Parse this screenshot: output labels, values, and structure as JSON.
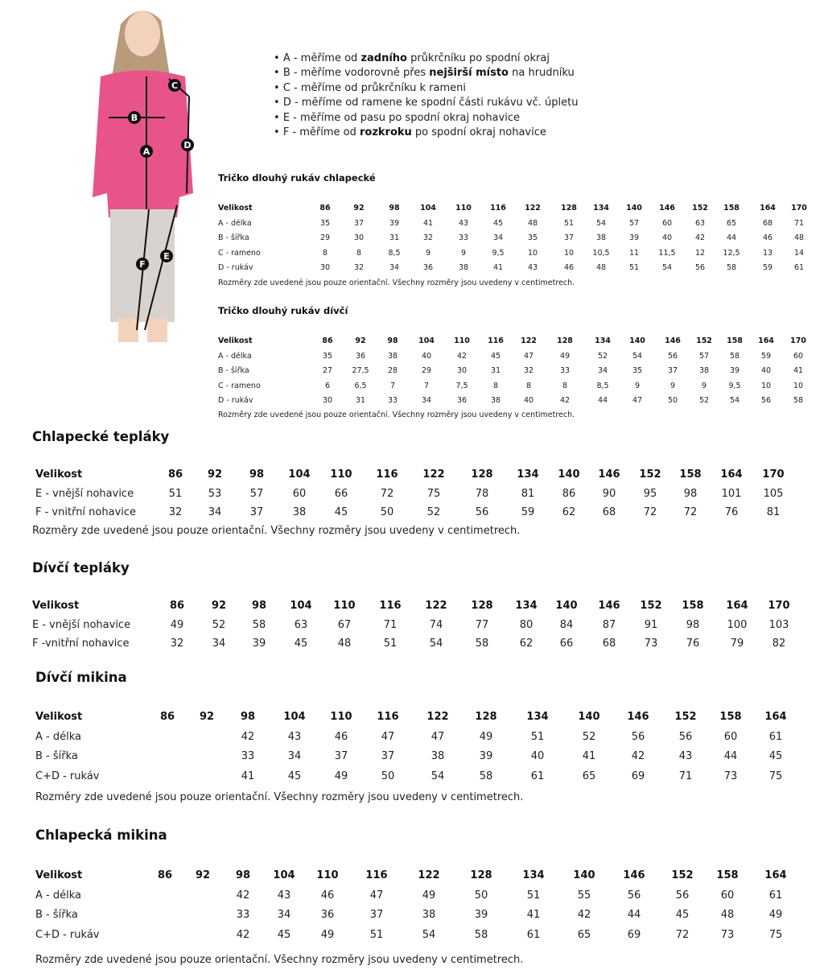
{
  "photo": {
    "markers": [
      "A",
      "B",
      "C",
      "D",
      "E",
      "F"
    ],
    "colors": {
      "top": "#e8548a",
      "marker": "#111111"
    }
  },
  "instructions": [
    {
      "pre": "A - měříme od ",
      "bold": "zadního",
      "post": " průkrčníku po spodní okraj"
    },
    {
      "pre": "B - měříme vodorovně přes ",
      "bold": "nejširší místo",
      "post": " na hrudníku"
    },
    {
      "pre": "C - měříme od průkrčníku k rameni",
      "bold": "",
      "post": ""
    },
    {
      "pre": "D - měříme od ramene ke spodní části rukávu vč. úpletu",
      "bold": "",
      "post": ""
    },
    {
      "pre": "E - měříme od pasu po spodní okraj nohavice",
      "bold": "",
      "post": ""
    },
    {
      "pre": "F - měříme od ",
      "bold": "rozkroku",
      "post": " po spodní okraj nohavice"
    }
  ],
  "tables": [
    {
      "id": "boys-shirt",
      "title": "Tričko dlouhý rukáv chlapecké",
      "header_label": "Velikost",
      "sizes": [
        "86",
        "92",
        "98",
        "104",
        "110",
        "116",
        "122",
        "128",
        "134",
        "140",
        "146",
        "152",
        "158",
        "164",
        "170"
      ],
      "rows": [
        {
          "label": "A - délka",
          "values": [
            "35",
            "37",
            "39",
            "41",
            "43",
            "45",
            "48",
            "51",
            "54",
            "57",
            "60",
            "63",
            "65",
            "68",
            "71"
          ]
        },
        {
          "label": "B - šířka",
          "values": [
            "29",
            "30",
            "31",
            "32",
            "33",
            "34",
            "35",
            "37",
            "38",
            "39",
            "40",
            "42",
            "44",
            "46",
            "48"
          ]
        },
        {
          "label": "C - rameno",
          "values": [
            "8",
            "8",
            "8,5",
            "9",
            "9",
            "9,5",
            "10",
            "10",
            "10,5",
            "11",
            "11,5",
            "12",
            "12,5",
            "13",
            "14"
          ]
        },
        {
          "label": "D - rukáv",
          "values": [
            "30",
            "32",
            "34",
            "36",
            "38",
            "41",
            "43",
            "46",
            "48",
            "51",
            "54",
            "56",
            "58",
            "59",
            "61"
          ]
        }
      ],
      "note": "Rozměry zde uvedené jsou pouze orientační. Všechny rozměry jsou uvedeny v centimetrech."
    },
    {
      "id": "girls-shirt",
      "title": "Tričko dlouhý rukáv dívčí",
      "header_label": "Velikost",
      "sizes": [
        "86",
        "92",
        "98",
        "104",
        "110",
        "116",
        "122",
        "128",
        "134",
        "140",
        "146",
        "152",
        "158",
        "164",
        "170"
      ],
      "rows": [
        {
          "label": "A - délka",
          "values": [
            "35",
            "36",
            "38",
            "40",
            "42",
            "45",
            "47",
            "49",
            "52",
            "54",
            "56",
            "57",
            "58",
            "59",
            "60"
          ]
        },
        {
          "label": "B - šířka",
          "values": [
            "27",
            "27,5",
            "28",
            "29",
            "30",
            "31",
            "32",
            "33",
            "34",
            "35",
            "37",
            "38",
            "39",
            "40",
            "41"
          ]
        },
        {
          "label": "C - rameno",
          "values": [
            "6",
            "6,5",
            "7",
            "7",
            "7,5",
            "8",
            "8",
            "8",
            "8,5",
            "9",
            "9",
            "9",
            "9,5",
            "10",
            "10"
          ]
        },
        {
          "label": "D - rukáv",
          "values": [
            "30",
            "31",
            "33",
            "34",
            "36",
            "38",
            "40",
            "42",
            "44",
            "47",
            "50",
            "52",
            "54",
            "56",
            "58"
          ]
        }
      ],
      "note": "Rozměry zde uvedené jsou pouze orientační. Všechny rozměry jsou uvedeny v centimetrech."
    },
    {
      "id": "boys-pants",
      "title": "Chlapecké tepláky",
      "header_label": "Velikost",
      "sizes": [
        "86",
        "92",
        "98",
        "104",
        "110",
        "116",
        "122",
        "128",
        "134",
        "140",
        "146",
        "152",
        "158",
        "164",
        "170"
      ],
      "rows": [
        {
          "label": "E - vnější nohavice",
          "values": [
            "51",
            "53",
            "57",
            "60",
            "66",
            "72",
            "75",
            "78",
            "81",
            "86",
            "90",
            "95",
            "98",
            "101",
            "105"
          ]
        },
        {
          "label": "F - vnitřní nohavice",
          "values": [
            "32",
            "34",
            "37",
            "38",
            "45",
            "50",
            "52",
            "56",
            "59",
            "62",
            "68",
            "72",
            "72",
            "76",
            "81"
          ]
        }
      ],
      "note": "Rozměry zde uvedené jsou pouze orientační. Všechny rozměry jsou uvedeny v centimetrech."
    },
    {
      "id": "girls-pants",
      "title": "Dívčí tepláky",
      "header_label": "Velikost",
      "sizes": [
        "86",
        "92",
        "98",
        "104",
        "110",
        "116",
        "122",
        "128",
        "134",
        "140",
        "146",
        "152",
        "158",
        "164",
        "170"
      ],
      "rows": [
        {
          "label": "E - vnější nohavice",
          "values": [
            "49",
            "52",
            "58",
            "63",
            "67",
            "71",
            "74",
            "77",
            "80",
            "84",
            "87",
            "91",
            "98",
            "100",
            "103"
          ]
        },
        {
          "label": "F -vnitřní nohavice",
          "values": [
            "32",
            "34",
            "39",
            "45",
            "48",
            "51",
            "54",
            "58",
            "62",
            "66",
            "68",
            "73",
            "76",
            "79",
            "82"
          ]
        }
      ],
      "note": ""
    },
    {
      "id": "girls-hoodie",
      "title": "Dívčí mikina",
      "header_label": "Velikost",
      "sizes": [
        "86",
        "92",
        "98",
        "104",
        "110",
        "116",
        "122",
        "128",
        "134",
        "140",
        "146",
        "152",
        "158",
        "164"
      ],
      "rows": [
        {
          "label": "A - délka",
          "values": [
            "",
            "",
            "42",
            "43",
            "46",
            "47",
            "47",
            "49",
            "51",
            "52",
            "56",
            "56",
            "60",
            "61"
          ]
        },
        {
          "label": "B - šířka",
          "values": [
            "",
            "",
            "33",
            "34",
            "37",
            "37",
            "38",
            "39",
            "40",
            "41",
            "42",
            "43",
            "44",
            "45"
          ]
        },
        {
          "label": "C+D - rukáv",
          "values": [
            "",
            "",
            "41",
            "45",
            "49",
            "50",
            "54",
            "58",
            "61",
            "65",
            "69",
            "71",
            "73",
            "75"
          ]
        }
      ],
      "note": "Rozměry zde uvedené jsou pouze orientační. Všechny rozměry jsou uvedeny v centimetrech."
    },
    {
      "id": "boys-hoodie",
      "title": "Chlapecká mikina",
      "header_label": "Velikost",
      "sizes": [
        "86",
        "92",
        "98",
        "104",
        "110",
        "116",
        "122",
        "128",
        "134",
        "140",
        "146",
        "152",
        "158",
        "164"
      ],
      "rows": [
        {
          "label": "A - délka",
          "values": [
            "",
            "",
            "42",
            "43",
            "46",
            "47",
            "49",
            "50",
            "51",
            "55",
            "56",
            "56",
            "60",
            "61"
          ]
        },
        {
          "label": "B - šířka",
          "values": [
            "",
            "",
            "33",
            "34",
            "36",
            "37",
            "38",
            "39",
            "41",
            "42",
            "44",
            "45",
            "48",
            "49"
          ]
        },
        {
          "label": "C+D - rukáv",
          "values": [
            "",
            "",
            "42",
            "45",
            "49",
            "51",
            "54",
            "58",
            "61",
            "65",
            "69",
            "72",
            "73",
            "75"
          ]
        }
      ],
      "note": "Rozměry zde uvedené jsou pouze orientační. Všechny rozměry jsou uvedeny v centimetrech."
    }
  ]
}
